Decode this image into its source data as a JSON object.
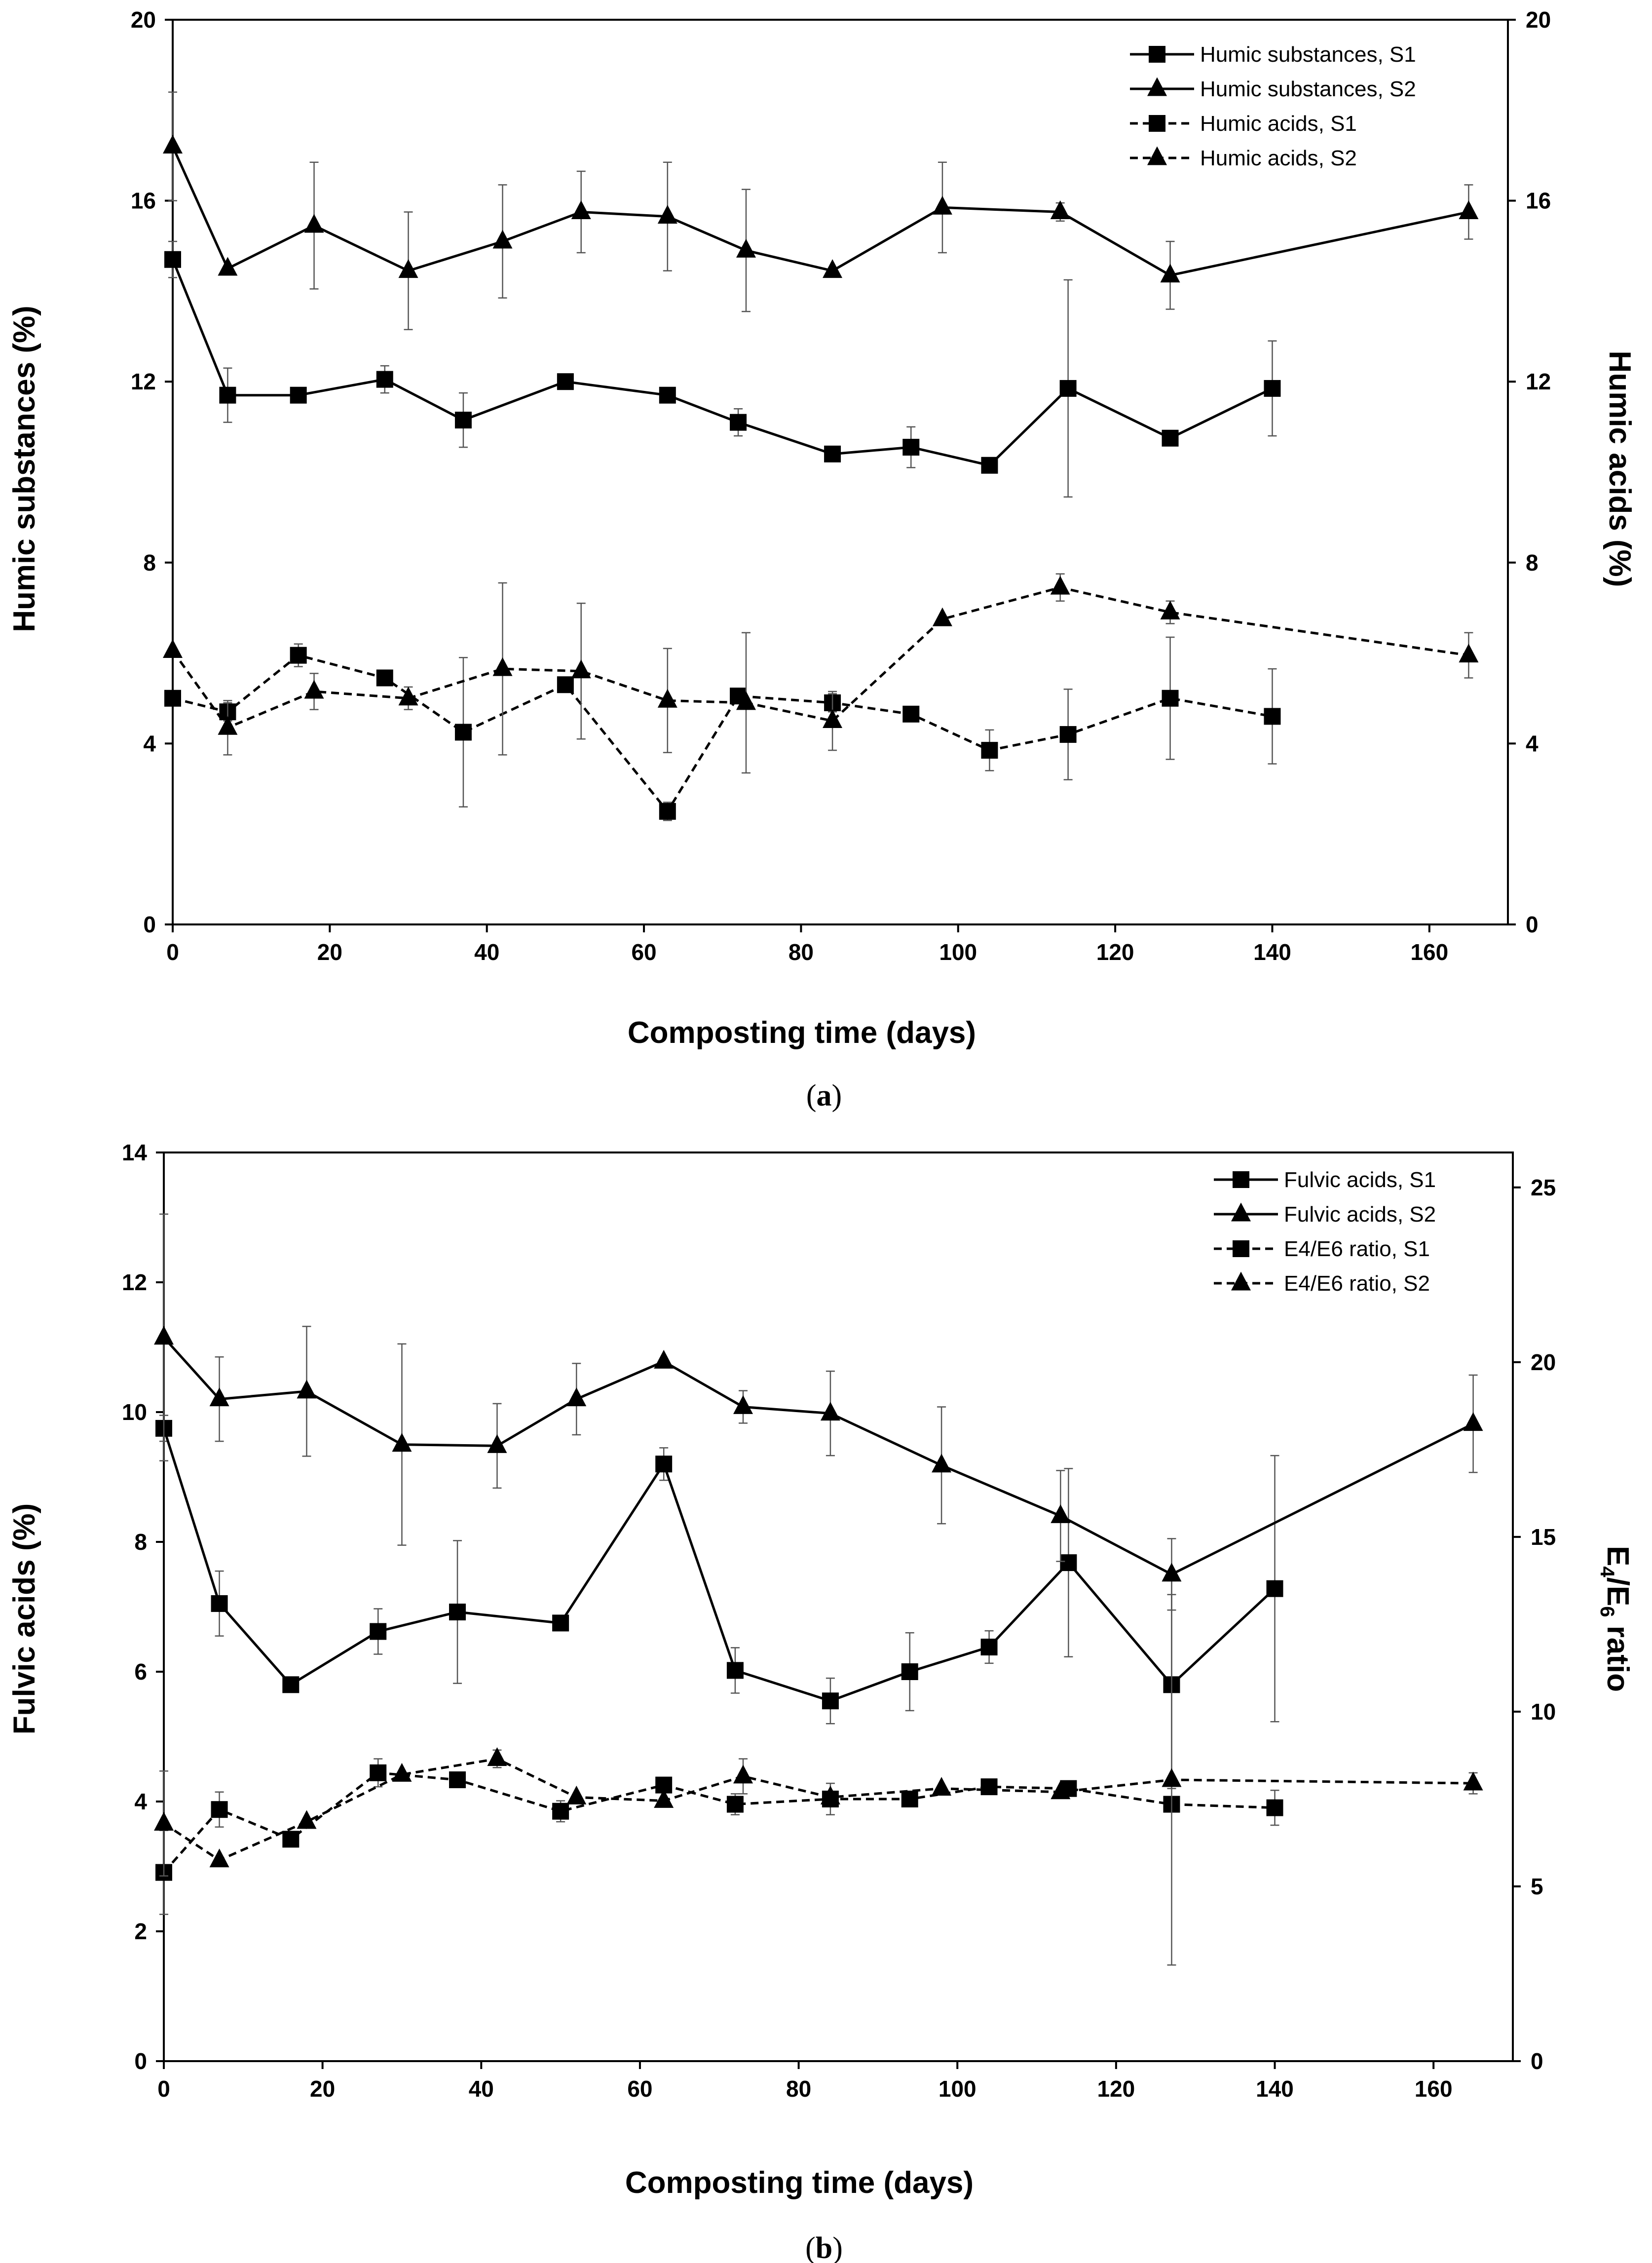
{
  "chart_data": [
    {
      "type": "line",
      "panel_label": "a",
      "xlabel": "Composting time (days)",
      "ylabel": "Humic substances (%)",
      "y2label": "Humic acids (%)",
      "xlim": [
        0,
        170
      ],
      "ylim": [
        0,
        20
      ],
      "y2lim": [
        0,
        20
      ],
      "xticks": [
        0,
        20,
        40,
        60,
        80,
        100,
        120,
        140,
        160
      ],
      "yticks": [
        0,
        4,
        8,
        12,
        16,
        20
      ],
      "y2ticks": [
        0,
        4,
        8,
        12,
        16,
        20
      ],
      "grid": false,
      "legend_position": "top-right",
      "series": [
        {
          "name": "Humic substances, S1",
          "marker": "square",
          "line": "solid",
          "axis": "left",
          "x": [
            0,
            7,
            16,
            27,
            37,
            50,
            63,
            72,
            84,
            94,
            104,
            114,
            127,
            140
          ],
          "y": [
            14.7,
            11.7,
            11.7,
            12.05,
            11.15,
            12.0,
            11.7,
            11.1,
            10.4,
            10.55,
            10.15,
            11.85,
            10.75,
            11.85
          ],
          "err": [
            0.4,
            0.6,
            0,
            0.3,
            0.6,
            0,
            0,
            0.3,
            0,
            0.45,
            0,
            2.4,
            0,
            1.05
          ]
        },
        {
          "name": "Humic substances, S2",
          "marker": "triangle",
          "line": "solid",
          "axis": "left",
          "x": [
            0,
            7,
            18,
            30,
            42,
            52,
            63,
            73,
            84,
            98,
            113,
            127,
            165
          ],
          "y": [
            17.2,
            14.5,
            15.45,
            14.45,
            15.1,
            15.75,
            15.65,
            14.9,
            14.45,
            15.85,
            15.75,
            14.35,
            15.75
          ],
          "err": [
            1.2,
            0,
            1.4,
            1.3,
            1.25,
            0.9,
            1.2,
            1.35,
            0,
            1.0,
            0.2,
            0.75,
            0.6
          ]
        },
        {
          "name": "Humic acids, S1",
          "marker": "square",
          "line": "dashed",
          "axis": "right",
          "x": [
            0,
            7,
            16,
            27,
            37,
            50,
            63,
            72,
            84,
            94,
            104,
            114,
            127,
            140
          ],
          "y": [
            5.0,
            4.7,
            5.95,
            5.45,
            4.25,
            5.3,
            2.5,
            5.05,
            4.9,
            4.65,
            3.85,
            4.2,
            5.0,
            4.6
          ],
          "err": [
            0,
            0.2,
            0.25,
            0,
            1.65,
            0,
            0.2,
            0,
            0.2,
            0,
            0.45,
            1.0,
            1.35,
            1.05
          ]
        },
        {
          "name": "Humic acids, S2",
          "marker": "triangle",
          "line": "dashed",
          "axis": "right",
          "x": [
            0,
            7,
            18,
            30,
            42,
            52,
            63,
            73,
            84,
            98,
            113,
            127,
            165
          ],
          "y": [
            6.05,
            4.35,
            5.15,
            5.0,
            5.65,
            5.6,
            4.95,
            4.9,
            4.5,
            6.75,
            7.45,
            6.9,
            5.95
          ],
          "err": [
            0,
            0.6,
            0.4,
            0.25,
            1.9,
            1.5,
            1.15,
            1.55,
            0.65,
            0,
            0.3,
            0.25,
            0.5
          ]
        }
      ]
    },
    {
      "type": "line",
      "panel_label": "b",
      "xlabel": "Composting time (days)",
      "ylabel": "Fulvic acids (%)",
      "y2label": {
        "main": "E",
        "sub1": "4",
        "slash": "/E",
        "sub2": "6",
        "rest": " ratio"
      },
      "xlim": [
        0,
        170
      ],
      "ylim": [
        0,
        14
      ],
      "y2lim": [
        0,
        26
      ],
      "xticks": [
        0,
        20,
        40,
        60,
        80,
        100,
        120,
        140,
        160
      ],
      "yticks": [
        0,
        2,
        4,
        6,
        8,
        10,
        12,
        14
      ],
      "y2ticks": [
        0,
        5,
        10,
        15,
        20,
        25
      ],
      "grid": false,
      "legend_position": "top-right",
      "series": [
        {
          "name": "Fulvic acids, S1",
          "marker": "square",
          "line": "solid",
          "axis": "left",
          "x": [
            0,
            7,
            16,
            27,
            37,
            50,
            63,
            72,
            84,
            94,
            104,
            114,
            127,
            140
          ],
          "y": [
            9.75,
            7.05,
            5.8,
            6.62,
            6.92,
            6.75,
            9.2,
            6.02,
            5.55,
            6.0,
            6.38,
            7.68,
            5.8,
            7.28
          ],
          "err": [
            0.2,
            0.5,
            0,
            0.35,
            1.1,
            0,
            0.25,
            0.35,
            0.35,
            0.6,
            0.25,
            1.45,
            1.6,
            2.05
          ]
        },
        {
          "name": "Fulvic acids, S2",
          "marker": "triangle",
          "line": "solid",
          "axis": "left",
          "x": [
            0,
            7,
            18,
            30,
            42,
            52,
            63,
            73,
            84,
            98,
            113,
            127,
            165
          ],
          "y": [
            11.15,
            10.2,
            10.32,
            9.5,
            9.48,
            10.2,
            10.78,
            10.08,
            9.98,
            9.18,
            8.4,
            7.5,
            9.82
          ],
          "err": [
            1.9,
            0.65,
            1.0,
            1.55,
            0.65,
            0.55,
            0,
            0.25,
            0.65,
            0.9,
            0.7,
            0.55,
            0.75
          ]
        },
        {
          "name": "E4/E6 ratio, S1",
          "marker": "square",
          "line": "dashed",
          "axis": "right",
          "x": [
            0,
            7,
            16,
            27,
            37,
            50,
            63,
            72,
            84,
            94,
            104,
            114,
            127,
            140
          ],
          "y": [
            5.4,
            7.2,
            6.35,
            8.25,
            8.05,
            7.15,
            7.9,
            7.35,
            7.5,
            7.5,
            7.85,
            7.8,
            7.35,
            7.25
          ],
          "err": [
            1.2,
            0.5,
            0,
            0.4,
            0,
            0.3,
            0,
            0.3,
            0.45,
            0,
            0,
            0,
            0,
            0.5
          ]
        },
        {
          "name": "E4/E6 ratio, S2",
          "marker": "triangle",
          "line": "dashed",
          "axis": "right",
          "x": [
            0,
            7,
            18,
            30,
            42,
            52,
            63,
            73,
            84,
            98,
            113,
            127,
            165
          ],
          "y": [
            6.8,
            5.75,
            6.85,
            8.2,
            8.65,
            7.55,
            7.45,
            8.15,
            7.55,
            7.8,
            7.7,
            8.05,
            7.95
          ],
          "err": [
            1.5,
            0,
            0,
            0,
            0.25,
            0,
            0,
            0.5,
            0,
            0,
            0,
            5.3,
            0.3
          ]
        }
      ]
    }
  ]
}
